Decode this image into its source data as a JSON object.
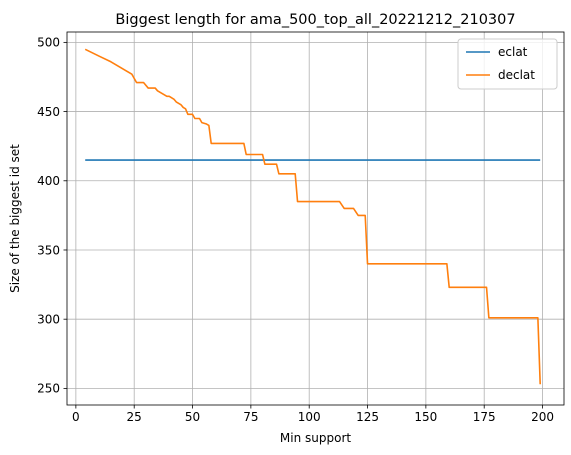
{
  "chart_data": {
    "type": "line",
    "title": "Biggest length for ama_500_top_all_20221212_210307",
    "xlabel": "Min support",
    "ylabel": "Size of the biggest id set",
    "xlim": [
      -3.8,
      209.2
    ],
    "ylim": [
      238,
      507.5
    ],
    "x_ticks": [
      0,
      25,
      50,
      75,
      100,
      125,
      150,
      175,
      200
    ],
    "y_ticks": [
      250,
      300,
      350,
      400,
      450,
      500
    ],
    "grid": true,
    "legend_position": "top-right",
    "series": [
      {
        "name": "eclat",
        "color": "#1f77b4",
        "points": [
          [
            4,
            415
          ],
          [
            199,
            415
          ]
        ]
      },
      {
        "name": "declat",
        "color": "#ff7f0e",
        "points": [
          [
            4,
            495
          ],
          [
            10,
            490
          ],
          [
            15,
            486
          ],
          [
            20,
            481
          ],
          [
            24,
            477
          ],
          [
            25,
            474
          ],
          [
            26,
            471
          ],
          [
            29,
            471
          ],
          [
            31,
            467
          ],
          [
            34,
            467
          ],
          [
            35,
            465
          ],
          [
            37,
            463
          ],
          [
            39,
            461
          ],
          [
            40,
            461
          ],
          [
            42,
            459
          ],
          [
            43,
            457
          ],
          [
            45,
            455
          ],
          [
            46,
            453
          ],
          [
            47,
            452
          ],
          [
            48,
            448
          ],
          [
            50,
            448
          ],
          [
            51,
            445
          ],
          [
            53,
            445
          ],
          [
            54,
            442
          ],
          [
            56,
            441
          ],
          [
            57,
            440
          ],
          [
            58,
            427
          ],
          [
            72,
            427
          ],
          [
            73,
            419
          ],
          [
            80,
            419
          ],
          [
            81,
            412
          ],
          [
            86,
            412
          ],
          [
            87,
            405
          ],
          [
            94,
            405
          ],
          [
            95,
            385
          ],
          [
            113,
            385
          ],
          [
            115,
            380
          ],
          [
            119,
            380
          ],
          [
            121,
            375
          ],
          [
            124,
            375
          ],
          [
            125,
            340
          ],
          [
            159,
            340
          ],
          [
            160,
            323
          ],
          [
            176,
            323
          ],
          [
            177,
            301
          ],
          [
            198,
            301
          ],
          [
            199,
            253
          ]
        ]
      }
    ]
  }
}
